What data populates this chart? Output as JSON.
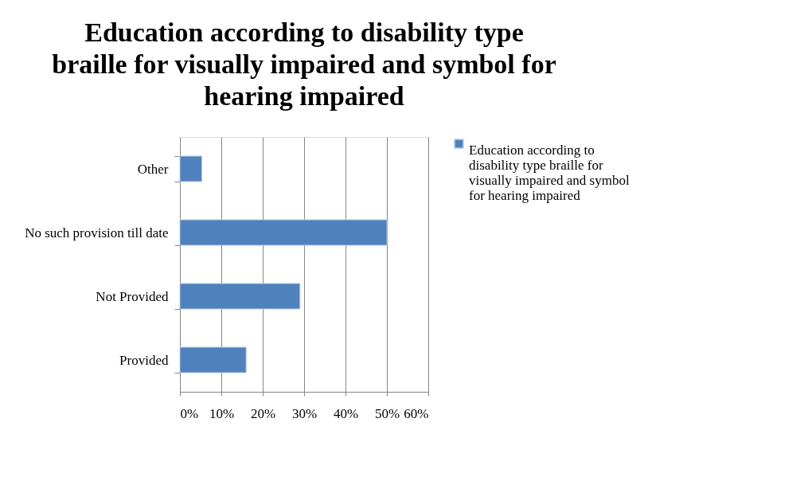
{
  "chart_data": {
    "type": "bar",
    "orientation": "horizontal",
    "title": "Education according to disability type braille for visually impaired and symbol for hearing impaired",
    "categories": [
      "Other",
      "No such provision till date",
      "Not Provided",
      "Provided"
    ],
    "series": [
      {
        "name": "Education according to disability type braille for visually impaired and symbol for hearing impaired",
        "color": "#4f81bd",
        "values": [
          5.3,
          50,
          29,
          16
        ]
      }
    ],
    "xlim": [
      0,
      60
    ],
    "xticks": [
      {
        "value": 0,
        "label": "0%"
      },
      {
        "value": 10,
        "label": "10%"
      },
      {
        "value": 20,
        "label": "20%"
      },
      {
        "value": 30,
        "label": "30%"
      },
      {
        "value": 40,
        "label": "40%"
      },
      {
        "value": 50,
        "label": "50%"
      },
      {
        "value": 60,
        "label": "60%"
      }
    ],
    "grid": "x",
    "legend": "right"
  }
}
